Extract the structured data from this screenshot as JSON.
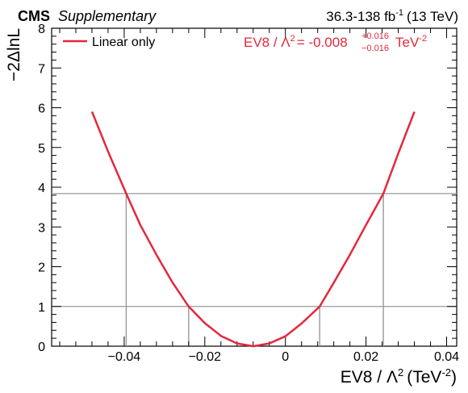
{
  "header": {
    "experiment": "CMS",
    "tag": "Supplementary",
    "lumi_prefix": "36.3-138 fb",
    "lumi_exp": "-1",
    "lumi_suffix": "(13 TeV)"
  },
  "legend": {
    "label": "Linear only"
  },
  "result": {
    "lhs": "EV8 / Λ",
    "lhs_exp": "2",
    "central": "= -0.008",
    "up": "+0.016",
    "down": "−0.016",
    "unit": "TeV",
    "unit_exp": "-2"
  },
  "colors": {
    "curve": "#e3283c",
    "reference_lines": "#999999"
  },
  "chart_data": {
    "type": "line",
    "xlabel_main": "EV8 / Λ",
    "xlabel_exp": "2",
    "xlabel_unit": "(TeV",
    "xlabel_unit_exp": "-2",
    "xlabel_close": ")",
    "ylabel": "−2ΔlnL",
    "xlim": [
      -0.058,
      0.0425
    ],
    "ylim": [
      0,
      8
    ],
    "xticks": [
      -0.04,
      -0.02,
      0,
      0.02,
      0.04
    ],
    "xtick_labels": [
      "−0.04",
      "−0.02",
      "0",
      "0.02",
      "0.04"
    ],
    "yticks": [
      0,
      1,
      2,
      3,
      4,
      5,
      6,
      7,
      8
    ],
    "ytick_labels": [
      "0",
      "1",
      "2",
      "3",
      "4",
      "5",
      "6",
      "7",
      "8"
    ],
    "reference_levels": [
      1,
      3.84
    ],
    "crossings": {
      "level_1": [
        -0.024,
        0.0085
      ],
      "level_3.84": [
        -0.0395,
        0.0243
      ]
    },
    "series": [
      {
        "name": "Linear only",
        "x": [
          -0.048,
          -0.044,
          -0.0395,
          -0.036,
          -0.032,
          -0.028,
          -0.024,
          -0.02,
          -0.016,
          -0.012,
          -0.008,
          -0.004,
          0.0,
          0.004,
          0.0085,
          0.012,
          0.016,
          0.02,
          0.0243,
          0.028,
          0.032
        ],
        "y": [
          5.9,
          4.9,
          3.84,
          3.05,
          2.3,
          1.6,
          1.0,
          0.58,
          0.26,
          0.07,
          0.0,
          0.07,
          0.25,
          0.57,
          1.0,
          1.6,
          2.3,
          3.05,
          3.84,
          4.85,
          5.9
        ]
      }
    ]
  }
}
